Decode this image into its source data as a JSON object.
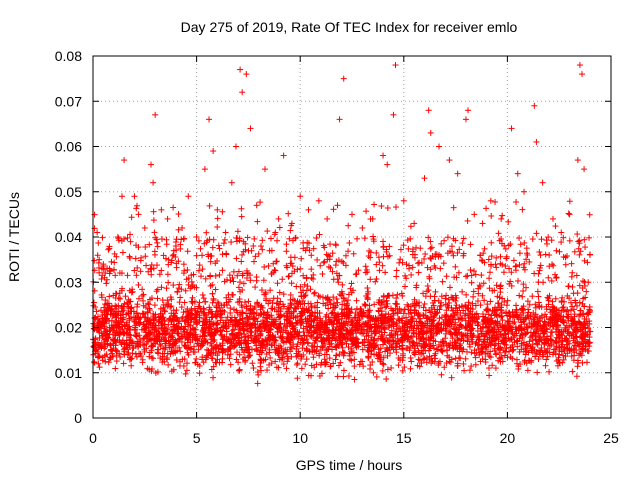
{
  "chart_data": {
    "type": "scatter",
    "title": "Day 275 of 2019, Rate Of TEC Index for receiver emlo",
    "xlabel": "GPS time / hours",
    "ylabel": "ROTI / TECUs",
    "xlim": [
      0,
      25
    ],
    "ylim": [
      0,
      0.08
    ],
    "x_ticks": [
      "0",
      "5",
      "10",
      "15",
      "20",
      "25"
    ],
    "x_tick_values": [
      0,
      5,
      10,
      15,
      20,
      25
    ],
    "y_ticks": [
      "0",
      "0.01",
      "0.02",
      "0.03",
      "0.04",
      "0.05",
      "0.06",
      "0.07",
      "0.08"
    ],
    "y_tick_values": [
      0,
      0.01,
      0.02,
      0.03,
      0.04,
      0.05,
      0.06,
      0.07,
      0.08
    ],
    "grid": true,
    "marker": "plus",
    "marker_color": "#ff0000",
    "x_range_of_data": [
      0,
      24
    ],
    "series": [
      {
        "points": [
          [
            0.2,
            0.041
          ],
          [
            0.3,
            0.035
          ],
          [
            0.5,
            0.034
          ],
          [
            0.8,
            0.033
          ],
          [
            1.2,
            0.04
          ],
          [
            1.4,
            0.049
          ],
          [
            1.5,
            0.057
          ],
          [
            2.0,
            0.049
          ],
          [
            2.2,
            0.045
          ],
          [
            2.5,
            0.042
          ],
          [
            2.8,
            0.056
          ],
          [
            2.9,
            0.052
          ],
          [
            3.0,
            0.067
          ],
          [
            3.3,
            0.046
          ],
          [
            3.6,
            0.044
          ],
          [
            4.0,
            0.038
          ],
          [
            4.3,
            0.042
          ],
          [
            4.6,
            0.049
          ],
          [
            5.0,
            0.04
          ],
          [
            5.4,
            0.055
          ],
          [
            5.6,
            0.066
          ],
          [
            5.8,
            0.059
          ],
          [
            6.0,
            0.046
          ],
          [
            6.4,
            0.041
          ],
          [
            6.7,
            0.052
          ],
          [
            6.9,
            0.06
          ],
          [
            7.1,
            0.077
          ],
          [
            7.2,
            0.072
          ],
          [
            7.4,
            0.076
          ],
          [
            7.6,
            0.064
          ],
          [
            7.9,
            0.047
          ],
          [
            8.3,
            0.055
          ],
          [
            8.8,
            0.041
          ],
          [
            9.2,
            0.058
          ],
          [
            9.6,
            0.043
          ],
          [
            10.0,
            0.049
          ],
          [
            10.4,
            0.046
          ],
          [
            10.9,
            0.048
          ],
          [
            11.3,
            0.044
          ],
          [
            11.8,
            0.047
          ],
          [
            11.9,
            0.066
          ],
          [
            12.1,
            0.075
          ],
          [
            12.5,
            0.045
          ],
          [
            13.0,
            0.042
          ],
          [
            13.5,
            0.044
          ],
          [
            14.0,
            0.058
          ],
          [
            14.2,
            0.056
          ],
          [
            14.5,
            0.067
          ],
          [
            14.6,
            0.078
          ],
          [
            15.0,
            0.048
          ],
          [
            15.5,
            0.043
          ],
          [
            16.0,
            0.053
          ],
          [
            16.2,
            0.068
          ],
          [
            16.3,
            0.063
          ],
          [
            16.7,
            0.06
          ],
          [
            17.2,
            0.057
          ],
          [
            17.6,
            0.054
          ],
          [
            18.0,
            0.066
          ],
          [
            18.1,
            0.068
          ],
          [
            18.4,
            0.045
          ],
          [
            18.8,
            0.043
          ],
          [
            19.2,
            0.048
          ],
          [
            19.7,
            0.044
          ],
          [
            20.2,
            0.064
          ],
          [
            20.5,
            0.054
          ],
          [
            20.8,
            0.05
          ],
          [
            21.3,
            0.069
          ],
          [
            21.4,
            0.061
          ],
          [
            21.7,
            0.052
          ],
          [
            22.2,
            0.044
          ],
          [
            22.6,
            0.041
          ],
          [
            23.0,
            0.045
          ],
          [
            23.4,
            0.057
          ],
          [
            23.5,
            0.078
          ],
          [
            23.6,
            0.076
          ],
          [
            23.7,
            0.055
          ],
          [
            23.9,
            0.03
          ]
        ]
      }
    ]
  }
}
